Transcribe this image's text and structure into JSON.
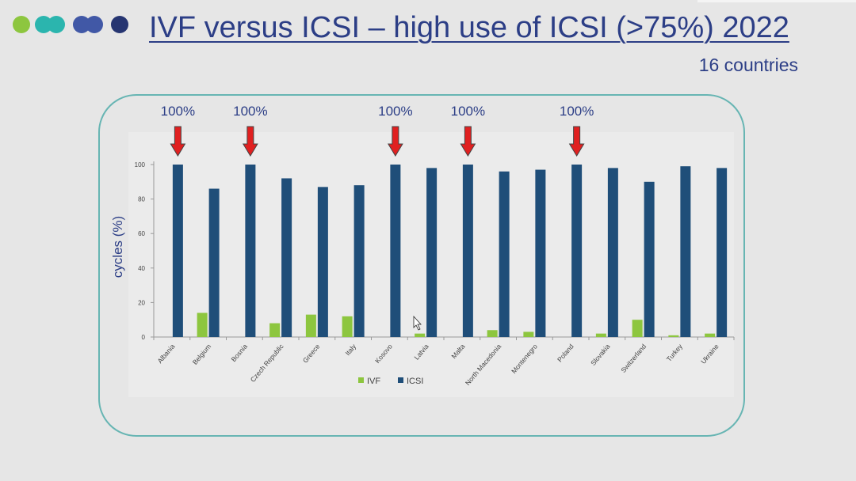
{
  "slide": {
    "title": "IVF versus ICSI – high use of ICSI (>75%) 2022",
    "subtitle": "16 countries"
  },
  "decor": {
    "dot_colors": [
      "#8dc63f",
      "#2bb5ae",
      "#2bb5ae",
      "#4158a6",
      "#4158a6",
      "#263571"
    ]
  },
  "colors": {
    "ivf": "#8dc63f",
    "icsi": "#1f4e79",
    "arrow": "#e02020",
    "text": "#2c3e86",
    "axis_text": "#444444"
  },
  "chart_data": {
    "type": "bar",
    "title": "",
    "xlabel": "",
    "ylabel": "cycles (%)",
    "ylim": [
      0,
      100
    ],
    "yticks": [
      0,
      20,
      40,
      60,
      80,
      100
    ],
    "grid": false,
    "legend_position": "bottom",
    "categories": [
      "Albania",
      "Belgium",
      "Bosnia",
      "Czech Republic",
      "Greece",
      "Italy",
      "Kosovo",
      "Latvia",
      "Malta",
      "North Macedonia",
      "Montenegro",
      "Poland",
      "Slovakia",
      "Switzerland",
      "Turkey",
      "Ukraine"
    ],
    "series": [
      {
        "name": "IVF",
        "values": [
          0,
          14,
          0,
          8,
          13,
          12,
          0,
          2,
          0,
          4,
          3,
          0,
          2,
          10,
          1,
          2
        ]
      },
      {
        "name": "ICSI",
        "values": [
          100,
          86,
          100,
          92,
          87,
          88,
          100,
          98,
          100,
          96,
          97,
          100,
          98,
          90,
          99,
          98
        ]
      }
    ],
    "annotations": [
      {
        "category": "Albania",
        "text": "100%"
      },
      {
        "category": "Bosnia",
        "text": "100%"
      },
      {
        "category": "Kosovo",
        "text": "100%"
      },
      {
        "category": "Malta",
        "text": "100%"
      },
      {
        "category": "Poland",
        "text": "100%"
      }
    ]
  }
}
